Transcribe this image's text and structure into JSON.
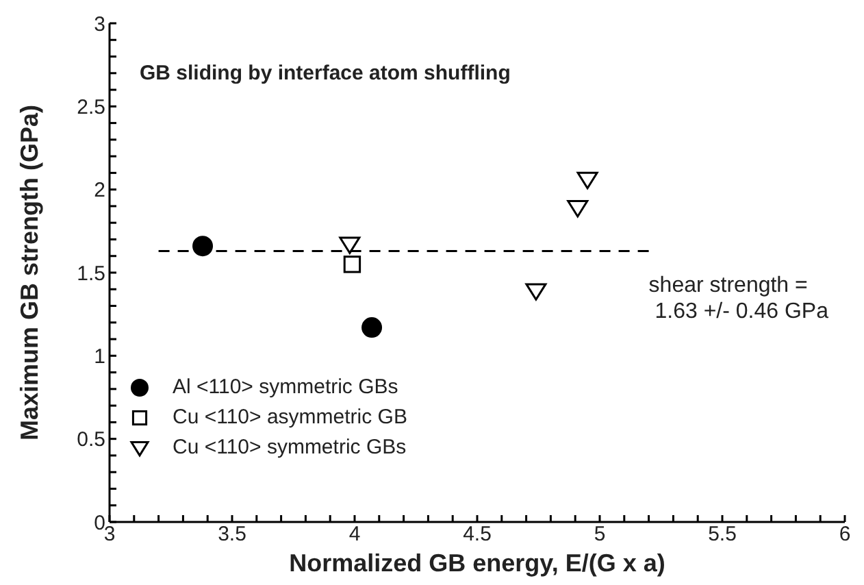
{
  "chart_data": {
    "type": "scatter",
    "title": "GB sliding by interface atom shuffling",
    "xlabel": "Normalized GB energy, E/(G x a)",
    "ylabel": "Maximum GB strength (GPa)",
    "annotations": [
      "shear strength =\n 1.63 +/- 0.46 GPa"
    ],
    "xlim": [
      3,
      6
    ],
    "ylim": [
      0,
      3
    ],
    "xticks": [
      3,
      {
        "value": 3.1,
        "label": null
      },
      {
        "value": 3.2,
        "label": null
      },
      {
        "value": 3.3,
        "label": null
      },
      {
        "value": 3.4,
        "label": null
      },
      3.5,
      {
        "value": 3.6,
        "label": null
      },
      {
        "value": 3.7,
        "label": null
      },
      {
        "value": 3.8,
        "label": null
      },
      {
        "value": 3.9,
        "label": null
      },
      4,
      {
        "value": 4.1,
        "label": null
      },
      {
        "value": 4.2,
        "label": null
      },
      {
        "value": 4.3,
        "label": null
      },
      {
        "value": 4.4,
        "label": null
      },
      4.5,
      {
        "value": 4.6,
        "label": null
      },
      {
        "value": 4.7,
        "label": null
      },
      {
        "value": 4.8,
        "label": null
      },
      {
        "value": 4.9,
        "label": null
      },
      5,
      {
        "value": 5.1,
        "label": null
      },
      {
        "value": 5.2,
        "label": null
      },
      {
        "value": 5.3,
        "label": null
      },
      {
        "value": 5.4,
        "label": null
      },
      5.5,
      {
        "value": 5.6,
        "label": null
      },
      {
        "value": 5.7,
        "label": null
      },
      {
        "value": 5.8,
        "label": null
      },
      {
        "value": 5.9,
        "label": null
      },
      6
    ],
    "yticks": [
      0,
      {
        "value": 0.1,
        "label": null
      },
      {
        "value": 0.2,
        "label": null
      },
      {
        "value": 0.3,
        "label": null
      },
      {
        "value": 0.4,
        "label": null
      },
      0.5,
      {
        "value": 0.6,
        "label": null
      },
      {
        "value": 0.7,
        "label": null
      },
      {
        "value": 0.8,
        "label": null
      },
      {
        "value": 0.9,
        "label": null
      },
      1,
      {
        "value": 1.1,
        "label": null
      },
      {
        "value": 1.2,
        "label": null
      },
      {
        "value": 1.3,
        "label": null
      },
      {
        "value": 1.4,
        "label": null
      },
      1.5,
      {
        "value": 1.6,
        "label": null
      },
      {
        "value": 1.7,
        "label": null
      },
      {
        "value": 1.8,
        "label": null
      },
      {
        "value": 1.9,
        "label": null
      },
      2,
      {
        "value": 2.1,
        "label": null
      },
      {
        "value": 2.2,
        "label": null
      },
      {
        "value": 2.3,
        "label": null
      },
      {
        "value": 2.4,
        "label": null
      },
      2.5,
      {
        "value": 2.6,
        "label": null
      },
      {
        "value": 2.7,
        "label": null
      },
      {
        "value": 2.8,
        "label": null
      },
      {
        "value": 2.9,
        "label": null
      },
      3
    ],
    "legend": "bottom left",
    "series": [
      {
        "name": "Al <110> symmetric GBs",
        "color": "#000000",
        "marker": "circle",
        "x": [
          3.38,
          4.07
        ],
        "values": [
          1.66,
          1.17
        ]
      },
      {
        "name": "Cu <110> asymmetric GB",
        "color": "#000000",
        "marker": "square",
        "x": [
          3.99
        ],
        "values": [
          1.55
        ]
      },
      {
        "name": "Cu <110> symmetric GBs",
        "color": "#000000",
        "marker": "triangle",
        "x": [
          3.98,
          4.74,
          4.91,
          4.95
        ],
        "values": [
          1.67,
          1.39,
          1.89,
          2.06
        ]
      },
      {
        "type": "line",
        "color": "#000000",
        "line_style": "dashed",
        "marker": "none",
        "x": [
          3.2,
          5.2
        ],
        "values": [
          1.63,
          1.63
        ]
      }
    ]
  }
}
